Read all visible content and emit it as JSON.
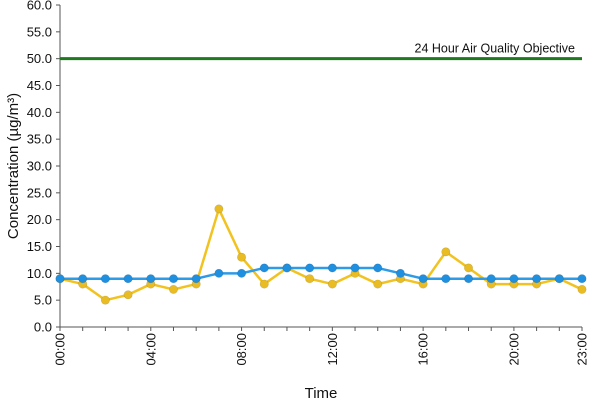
{
  "chart_data": {
    "type": "line",
    "title": "",
    "xlabel": "Time",
    "ylabel": "Concentration (µg/m³)",
    "ylim": [
      0,
      60
    ],
    "y_ticks": [
      "0.0",
      "5.0",
      "10.0",
      "15.0",
      "20.0",
      "25.0",
      "30.0",
      "35.0",
      "40.0",
      "45.0",
      "50.0",
      "55.0",
      "60.0"
    ],
    "x_ticks": [
      "00:00",
      "04:00",
      "08:00",
      "12:00",
      "16:00",
      "20:00",
      "23:00"
    ],
    "x_tick_hours": [
      0,
      4,
      8,
      12,
      16,
      20,
      23
    ],
    "x_hours": [
      0,
      1,
      2,
      3,
      4,
      5,
      6,
      7,
      8,
      9,
      10,
      11,
      12,
      13,
      14,
      15,
      16,
      17,
      18,
      19,
      20,
      21,
      22,
      23
    ],
    "grid": false,
    "reference_line": {
      "label": "24 Hour Air Quality Objective",
      "value": 50,
      "color": "#1f7a1f"
    },
    "series": [
      {
        "color": "#f2c320",
        "marker_color": "#e8bc22",
        "values": [
          9,
          8,
          5,
          6,
          8,
          7,
          8,
          22,
          13,
          8,
          11,
          9,
          8,
          10,
          8,
          9,
          8,
          14,
          11,
          8,
          8,
          8,
          9,
          7
        ]
      },
      {
        "color": "#2e9be6",
        "marker_color": "#1f8fe0",
        "values": [
          9,
          9,
          9,
          9,
          9,
          9,
          9,
          10,
          10,
          11,
          11,
          11,
          11,
          11,
          11,
          10,
          9,
          9,
          9,
          9,
          9,
          9,
          9,
          9
        ]
      }
    ]
  }
}
